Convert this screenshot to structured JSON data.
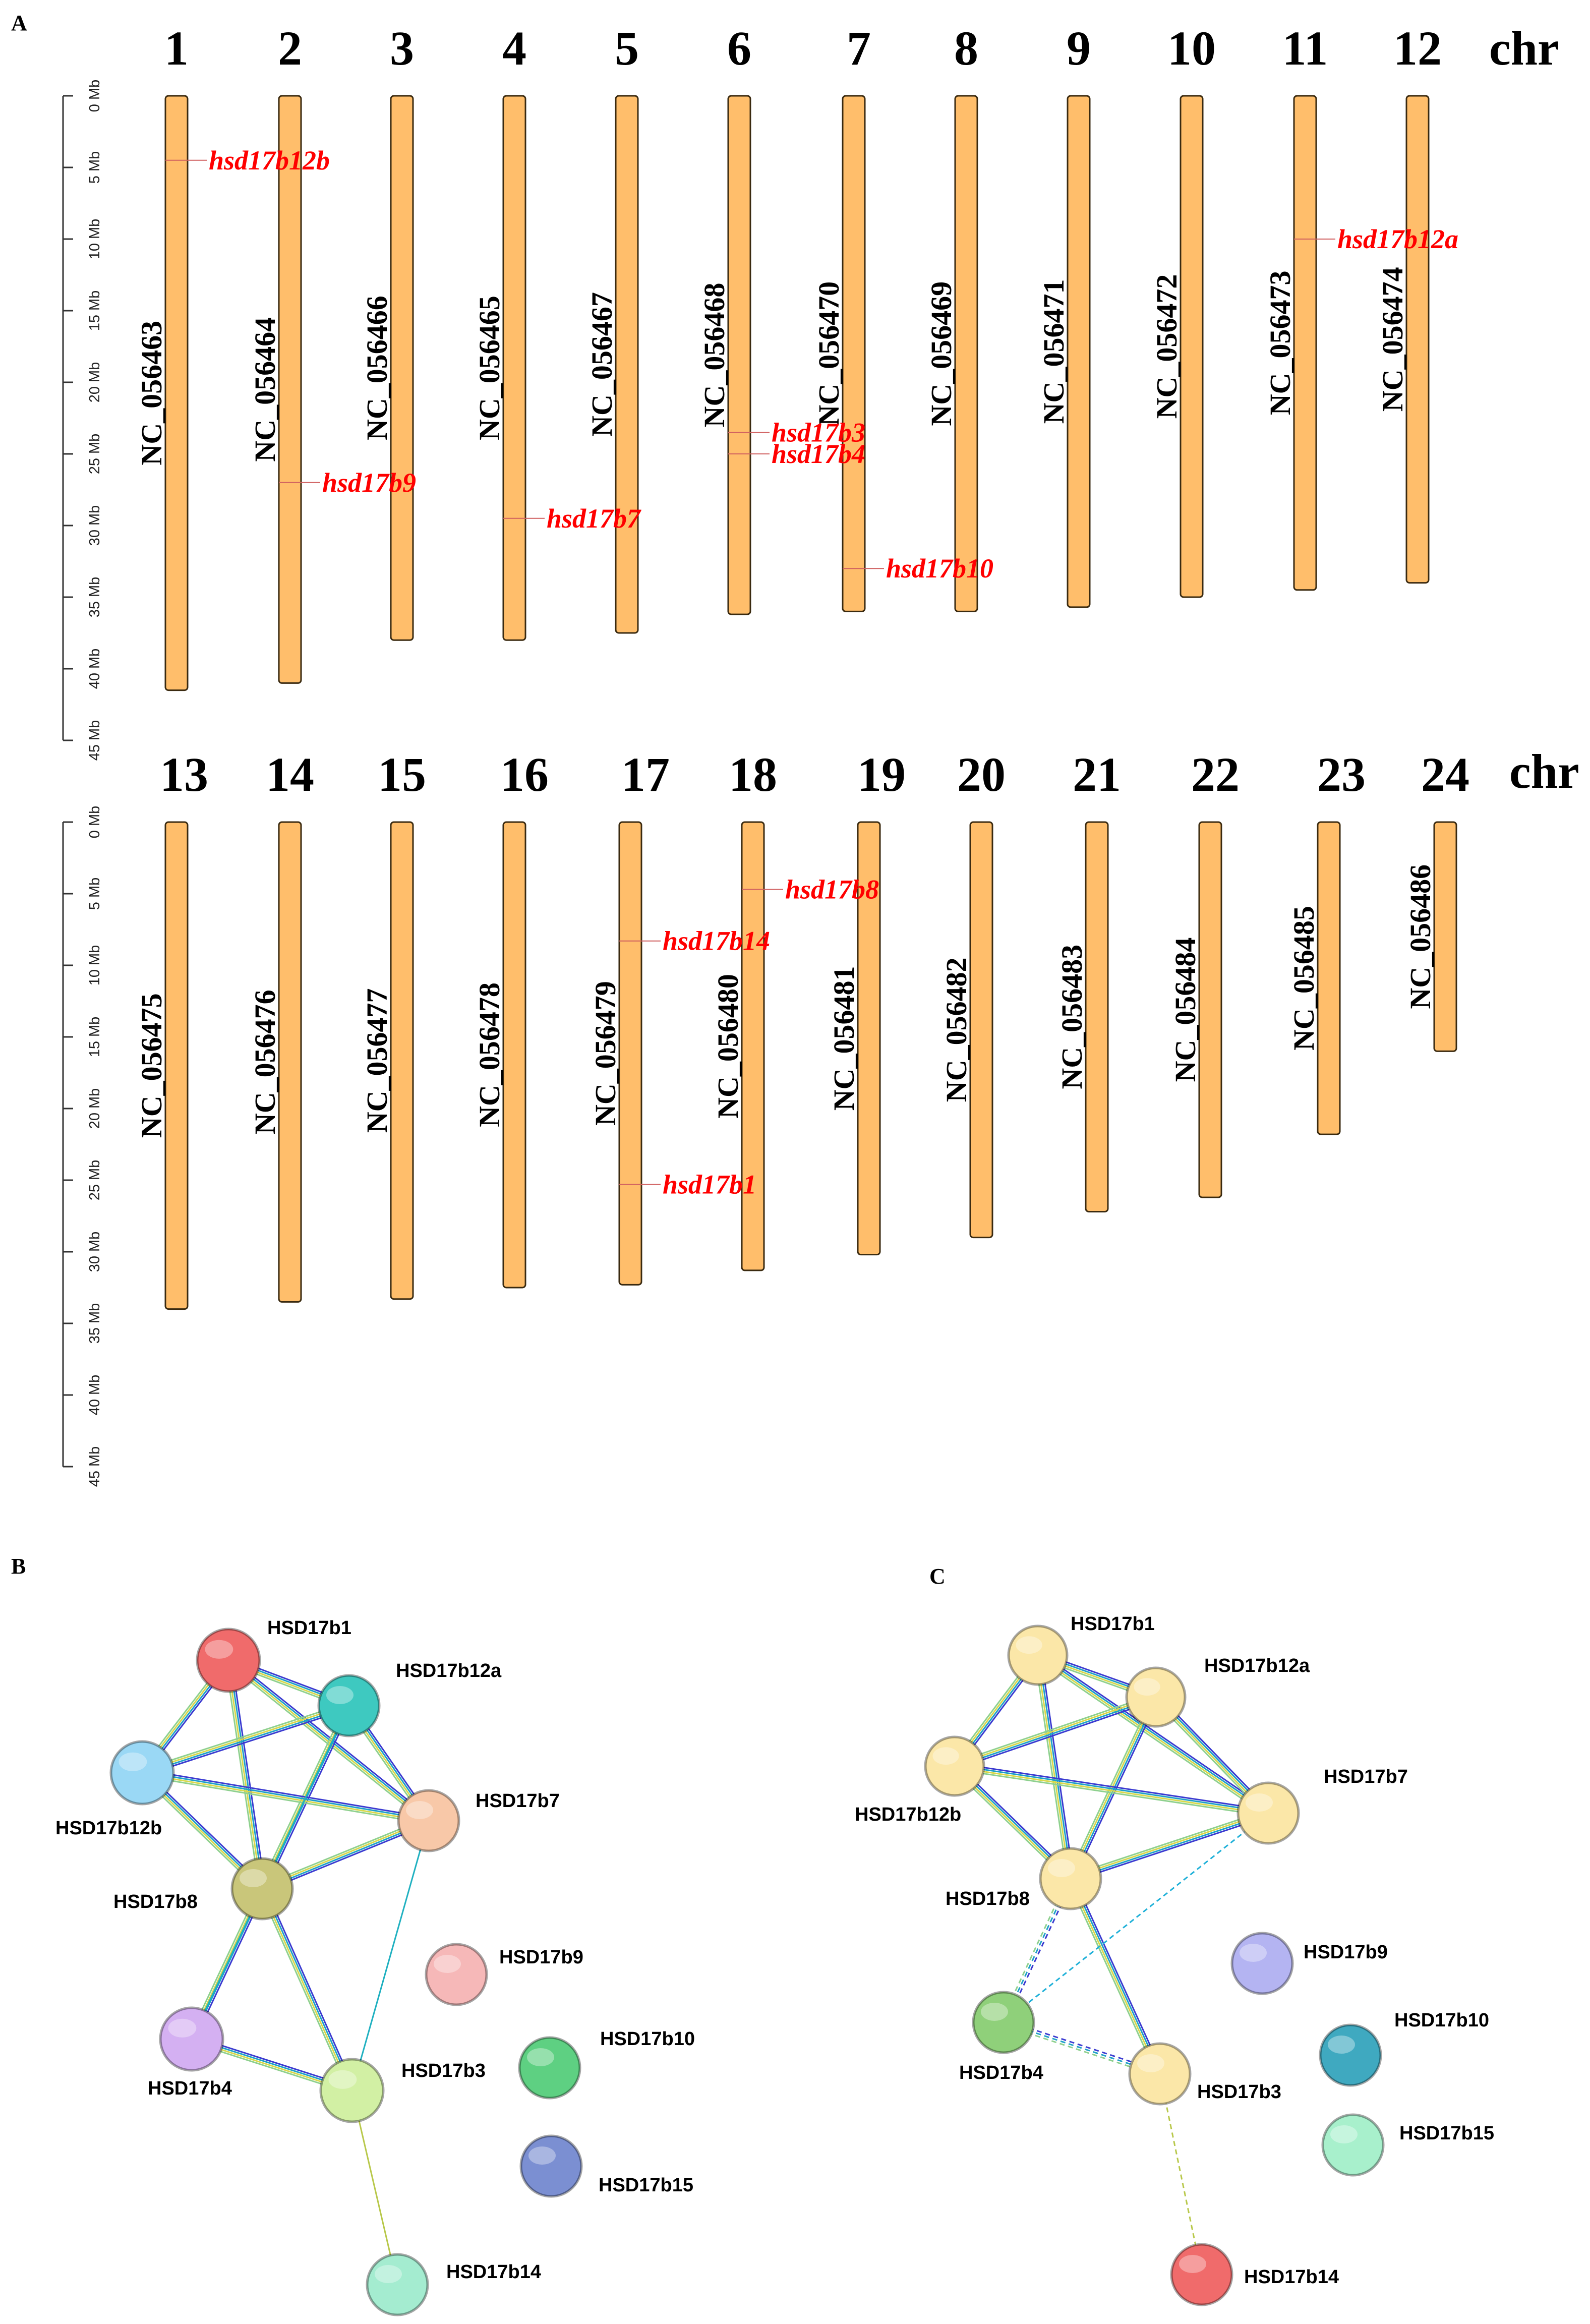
{
  "panels": {
    "a": "A",
    "b": "B",
    "c": "C"
  },
  "chromosome_map": {
    "chr_label": "chr",
    "scale_ticks": [
      "0 Mb",
      "5 Mb",
      "10 Mb",
      "15 Mb",
      "20 Mb",
      "25 Mb",
      "30 Mb",
      "35 Mb",
      "40 Mb",
      "45 Mb"
    ],
    "rows": [
      {
        "chromosomes": [
          {
            "num": "1",
            "accession": "NC_056463",
            "length_mb": 41.5
          },
          {
            "num": "2",
            "accession": "NC_056464",
            "length_mb": 41.0
          },
          {
            "num": "3",
            "accession": "NC_056466",
            "length_mb": 38.0
          },
          {
            "num": "4",
            "accession": "NC_056465",
            "length_mb": 38.0
          },
          {
            "num": "5",
            "accession": "NC_056467",
            "length_mb": 37.5
          },
          {
            "num": "6",
            "accession": "NC_056468",
            "length_mb": 36.2
          },
          {
            "num": "7",
            "accession": "NC_056470",
            "length_mb": 36.0
          },
          {
            "num": "8",
            "accession": "NC_056469",
            "length_mb": 36.0
          },
          {
            "num": "9",
            "accession": "NC_056471",
            "length_mb": 35.7
          },
          {
            "num": "10",
            "accession": "NC_056472",
            "length_mb": 35.0
          },
          {
            "num": "11",
            "accession": "NC_056473",
            "length_mb": 34.5
          },
          {
            "num": "12",
            "accession": "NC_056474",
            "length_mb": 34.0
          }
        ],
        "genes": [
          {
            "name": "hsd17b12b",
            "chr_index": 0,
            "pos_mb": 4.5
          },
          {
            "name": "hsd17b9",
            "chr_index": 1,
            "pos_mb": 27.0
          },
          {
            "name": "hsd17b7",
            "chr_index": 3,
            "pos_mb": 29.5
          },
          {
            "name": "hsd17b3",
            "chr_index": 5,
            "pos_mb": 23.5
          },
          {
            "name": "hsd17b4",
            "chr_index": 5,
            "pos_mb": 25.0
          },
          {
            "name": "hsd17b10",
            "chr_index": 6,
            "pos_mb": 33.0
          },
          {
            "name": "hsd17b12a",
            "chr_index": 10,
            "pos_mb": 10.0
          }
        ]
      },
      {
        "chromosomes": [
          {
            "num": "13",
            "accession": "NC_056475",
            "length_mb": 34.0
          },
          {
            "num": "14",
            "accession": "NC_056476",
            "length_mb": 33.5
          },
          {
            "num": "15",
            "accession": "NC_056477",
            "length_mb": 33.3
          },
          {
            "num": "16",
            "accession": "NC_056478",
            "length_mb": 32.5
          },
          {
            "num": "17",
            "accession": "NC_056479",
            "length_mb": 32.3
          },
          {
            "num": "18",
            "accession": "NC_056480",
            "length_mb": 31.3
          },
          {
            "num": "19",
            "accession": "NC_056481",
            "length_mb": 30.2
          },
          {
            "num": "20",
            "accession": "NC_056482",
            "length_mb": 29.0
          },
          {
            "num": "21",
            "accession": "NC_056483",
            "length_mb": 27.2
          },
          {
            "num": "22",
            "accession": "NC_056484",
            "length_mb": 26.2
          },
          {
            "num": "23",
            "accession": "NC_056485",
            "length_mb": 21.8
          },
          {
            "num": "24",
            "accession": "NC_056486",
            "length_mb": 16.0
          }
        ],
        "genes": [
          {
            "name": "hsd17b8",
            "chr_index": 5,
            "pos_mb": 4.7
          },
          {
            "name": "hsd17b14",
            "chr_index": 4,
            "pos_mb": 8.3
          },
          {
            "name": "hsd17b1",
            "chr_index": 4,
            "pos_mb": 25.3
          }
        ]
      }
    ]
  },
  "network_b": {
    "nodes": [
      {
        "id": "HSD17b1",
        "label": "HSD17b1",
        "color": "#f06b6b"
      },
      {
        "id": "HSD17b12a",
        "label": "HSD17b12a",
        "color": "#3ec9c0"
      },
      {
        "id": "HSD17b12b",
        "label": "HSD17b12b",
        "color": "#9ad8f5"
      },
      {
        "id": "HSD17b7",
        "label": "HSD17b7",
        "color": "#f8c8a8"
      },
      {
        "id": "HSD17b8",
        "label": "HSD17b8",
        "color": "#c9c67a"
      },
      {
        "id": "HSD17b9",
        "label": "HSD17b9",
        "color": "#f6b8b8"
      },
      {
        "id": "HSD17b4",
        "label": "HSD17b4",
        "color": "#d4b0f2"
      },
      {
        "id": "HSD17b3",
        "label": "HSD17b3",
        "color": "#d2f0a4"
      },
      {
        "id": "HSD17b10",
        "label": "HSD17b10",
        "color": "#5ed082"
      },
      {
        "id": "HSD17b15",
        "label": "HSD17b15",
        "color": "#7b8fd2"
      },
      {
        "id": "HSD17b14",
        "label": "HSD17b14",
        "color": "#a4ecd0"
      }
    ]
  },
  "network_c": {
    "nodes": [
      {
        "id": "HSD17b1",
        "label": "HSD17b1",
        "color": "#fbe7a8"
      },
      {
        "id": "HSD17b12a",
        "label": "HSD17b12a",
        "color": "#fbe7a8"
      },
      {
        "id": "HSD17b12b",
        "label": "HSD17b12b",
        "color": "#fbe7a8"
      },
      {
        "id": "HSD17b7",
        "label": "HSD17b7",
        "color": "#fbe7a8"
      },
      {
        "id": "HSD17b8",
        "label": "HSD17b8",
        "color": "#fbe7a8"
      },
      {
        "id": "HSD17b9",
        "label": "HSD17b9",
        "color": "#b4b4f2"
      },
      {
        "id": "HSD17b4",
        "label": "HSD17b4",
        "color": "#8fd07a"
      },
      {
        "id": "HSD17b3",
        "label": "HSD17b3",
        "color": "#fbe7a8"
      },
      {
        "id": "HSD17b10",
        "label": "HSD17b10",
        "color": "#3fa9c0"
      },
      {
        "id": "HSD17b15",
        "label": "HSD17b15",
        "color": "#a8f0cc"
      },
      {
        "id": "HSD17b14",
        "label": "HSD17b14",
        "color": "#f06b6b"
      }
    ]
  }
}
